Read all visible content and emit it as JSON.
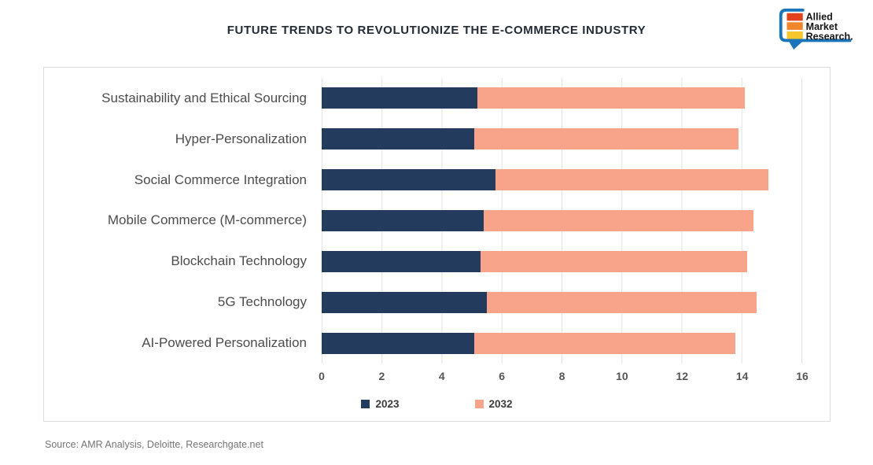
{
  "header": {
    "title": "FUTURE TRENDS TO REVOLUTIONIZE THE E-COMMERCE INDUSTRY",
    "logo": {
      "lines": [
        "Allied",
        "Market",
        "Research."
      ],
      "square_colors": [
        "#e2431e",
        "#f0862c",
        "#f6c62d"
      ],
      "bubble_color": "#1b75bb"
    }
  },
  "chart_data": {
    "type": "bar",
    "orientation": "horizontal",
    "stacked": true,
    "title": "FUTURE TRENDS TO REVOLUTIONIZE THE E-COMMERCE INDUSTRY",
    "categories": [
      "Sustainability and Ethical Sourcing",
      "Hyper-Personalization",
      "Social Commerce Integration",
      "Mobile Commerce (M-commerce)",
      "Blockchain Technology",
      "5G Technology",
      "AI-Powered Personalization"
    ],
    "series": [
      {
        "name": "2023",
        "color": "#233b5c",
        "values": [
          5.2,
          5.1,
          5.8,
          5.4,
          5.3,
          5.5,
          5.1
        ]
      },
      {
        "name": "2032",
        "color": "#f7a48a",
        "values": [
          8.9,
          8.8,
          9.1,
          9.0,
          8.9,
          9.0,
          8.7
        ]
      }
    ],
    "totals": [
      14.1,
      13.9,
      14.9,
      14.4,
      14.2,
      14.5,
      13.8
    ],
    "xlabel": "",
    "ylabel": "",
    "xlim": [
      0,
      16
    ],
    "xticks": [
      0,
      2,
      4,
      6,
      8,
      10,
      12,
      14,
      16
    ],
    "grid": "vertical",
    "legend_position": "bottom"
  },
  "footer": {
    "source": "Source: AMR Analysis, Deloitte, Researchgate.net"
  }
}
